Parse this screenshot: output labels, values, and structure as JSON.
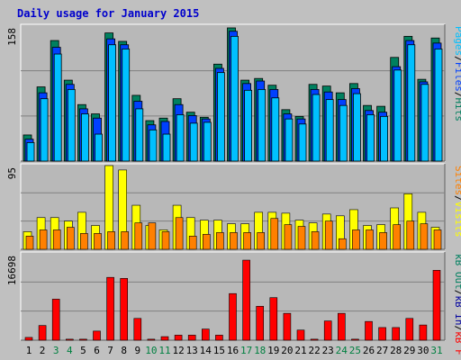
{
  "title": "Daily usage for January 2015",
  "colors": {
    "background": "#c0c0c0",
    "panel": "#b8b8b8",
    "title": "#0000cc",
    "hits": "#00805f",
    "files": "#0040ff",
    "pages": "#00c0ff",
    "visits": "#ffff00",
    "sites": "#ff8000",
    "kbin": "#0000a0",
    "kbout": "#008060",
    "kbf": "#ff0000",
    "weekend_day": "#008040",
    "weekday_day": "#000000"
  },
  "chart_data": [
    {
      "type": "bar",
      "panel": "hits-files-pages",
      "ylabel_max": "158",
      "ymax": 158,
      "legend": [
        {
          "text": "Hits",
          "color_key": "hits"
        },
        {
          "text": "Files",
          "color_key": "files"
        },
        {
          "text": "Pages",
          "color_key": "pages"
        }
      ],
      "legend_separator": "/",
      "series": [
        {
          "name": "Hits",
          "values": [
            31,
            88,
            143,
            96,
            67,
            56,
            152,
            142,
            78,
            48,
            51,
            74,
            58,
            52,
            115,
            158,
            96,
            98,
            90,
            61,
            53,
            91,
            89,
            81,
            92,
            66,
            65,
            123,
            148,
            97,
            146
          ]
        },
        {
          "name": "Files",
          "values": [
            26,
            81,
            135,
            91,
            62,
            51,
            145,
            138,
            71,
            43,
            47,
            67,
            54,
            50,
            110,
            154,
            92,
            95,
            85,
            56,
            50,
            85,
            82,
            73,
            86,
            60,
            58,
            112,
            143,
            94,
            140
          ]
        },
        {
          "name": "Pages",
          "values": [
            22,
            74,
            127,
            85,
            56,
            32,
            138,
            133,
            62,
            37,
            32,
            55,
            45,
            46,
            105,
            148,
            84,
            85,
            75,
            50,
            44,
            79,
            73,
            66,
            80,
            55,
            53,
            108,
            138,
            91,
            133
          ]
        }
      ]
    },
    {
      "type": "bar",
      "panel": "visits-sites",
      "ylabel_max": "95",
      "ymax": 95,
      "legend": [
        {
          "text": "Visits",
          "color_key": "visits"
        },
        {
          "text": "Sites",
          "color_key": "sites"
        }
      ],
      "legend_separator": "/",
      "series": [
        {
          "name": "Visits",
          "values": [
            20,
            36,
            36,
            32,
            42,
            27,
            95,
            90,
            50,
            27,
            22,
            50,
            36,
            33,
            33,
            29,
            29,
            42,
            42,
            41,
            33,
            30,
            40,
            38,
            45,
            27,
            28,
            47,
            63,
            42,
            25
          ]
        },
        {
          "name": "Sites",
          "values": [
            15,
            22,
            22,
            25,
            18,
            18,
            20,
            20,
            30,
            30,
            20,
            36,
            15,
            17,
            19,
            19,
            19,
            19,
            35,
            28,
            26,
            20,
            32,
            12,
            22,
            22,
            19,
            28,
            32,
            29,
            22
          ]
        }
      ]
    },
    {
      "type": "bar",
      "panel": "kbytes",
      "ylabel_max": "16698",
      "ymax": 16698,
      "legend": [
        {
          "text": "kB F",
          "color_key": "kbf"
        },
        {
          "text": "kB In",
          "color_key": "kbin"
        },
        {
          "text": "kB Out",
          "color_key": "kbout"
        }
      ],
      "legend_separator": "/",
      "series": [
        {
          "name": "kB F",
          "values": [
            550,
            2900,
            8100,
            200,
            200,
            1800,
            12400,
            12200,
            4300,
            200,
            700,
            1000,
            1000,
            2200,
            1000,
            9200,
            15800,
            6700,
            8400,
            5300,
            2000,
            200,
            3800,
            5300,
            200,
            3700,
            2500,
            2500,
            4300,
            3000,
            13800
          ]
        }
      ]
    }
  ],
  "days": [
    {
      "label": "1",
      "weekend": false
    },
    {
      "label": "2",
      "weekend": false
    },
    {
      "label": "3",
      "weekend": true
    },
    {
      "label": "4",
      "weekend": true
    },
    {
      "label": "5",
      "weekend": false
    },
    {
      "label": "6",
      "weekend": false
    },
    {
      "label": "7",
      "weekend": false
    },
    {
      "label": "8",
      "weekend": false
    },
    {
      "label": "9",
      "weekend": false
    },
    {
      "label": "10",
      "weekend": true
    },
    {
      "label": "11",
      "weekend": true
    },
    {
      "label": "12",
      "weekend": false
    },
    {
      "label": "13",
      "weekend": false
    },
    {
      "label": "14",
      "weekend": false
    },
    {
      "label": "15",
      "weekend": false
    },
    {
      "label": "16",
      "weekend": false
    },
    {
      "label": "17",
      "weekend": true
    },
    {
      "label": "18",
      "weekend": true
    },
    {
      "label": "19",
      "weekend": false
    },
    {
      "label": "20",
      "weekend": false
    },
    {
      "label": "21",
      "weekend": false
    },
    {
      "label": "22",
      "weekend": false
    },
    {
      "label": "23",
      "weekend": false
    },
    {
      "label": "24",
      "weekend": true
    },
    {
      "label": "25",
      "weekend": true
    },
    {
      "label": "26",
      "weekend": false
    },
    {
      "label": "27",
      "weekend": false
    },
    {
      "label": "28",
      "weekend": false
    },
    {
      "label": "29",
      "weekend": false
    },
    {
      "label": "30",
      "weekend": false
    },
    {
      "label": "31",
      "weekend": true
    }
  ]
}
